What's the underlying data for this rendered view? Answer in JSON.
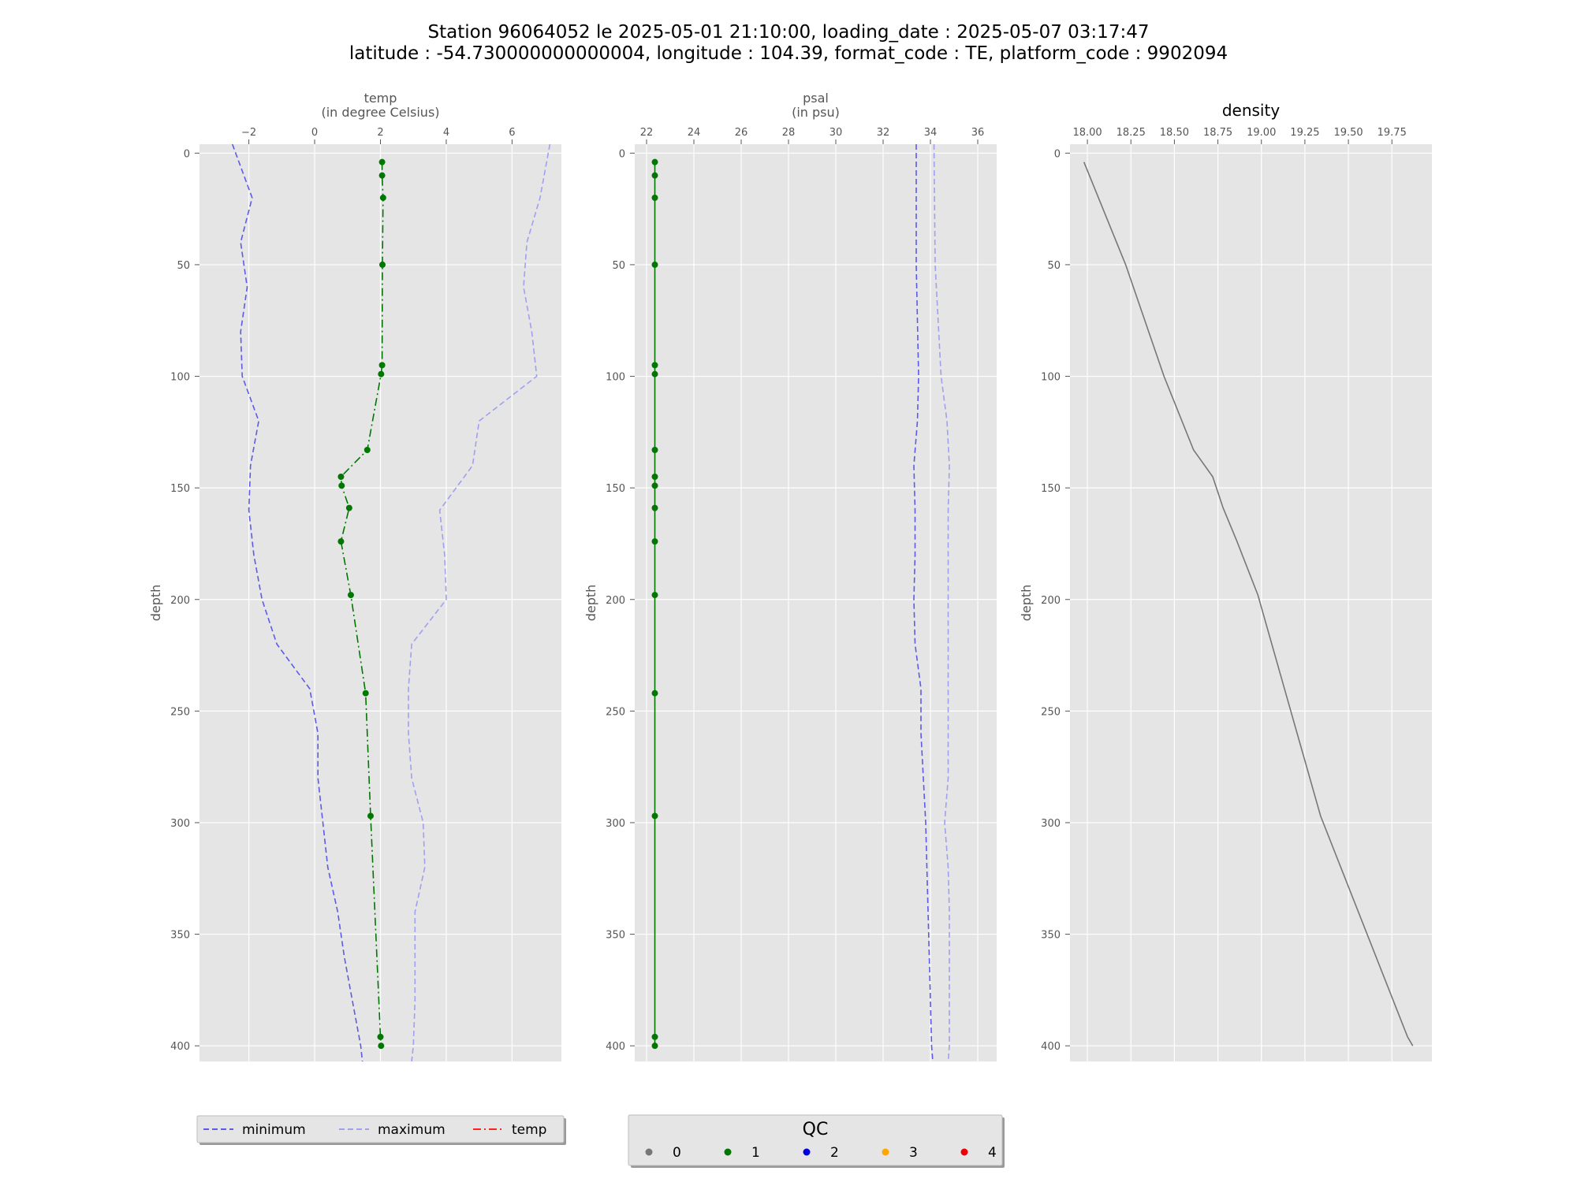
{
  "figure": {
    "title_line1": "Station 96064052 le 2025-05-01 21:10:00, loading_date : 2025-05-07 03:17:47",
    "title_line2": "latitude : -54.730000000000004, longitude : 104.39, format_code : TE, platform_code : 9902094"
  },
  "chart_data": [
    {
      "type": "line",
      "id": "temp",
      "xlabel": "temp",
      "xlabel_unit": "(in degree Celsius)",
      "ylabel": "depth",
      "xlim": [
        -3.5,
        7.5
      ],
      "ylim": [
        407,
        -4
      ],
      "xticks": [
        -2,
        0,
        2,
        4,
        6
      ],
      "xtick_labels": [
        "−2",
        "0",
        "2",
        "4",
        "6"
      ],
      "yticks": [
        0,
        50,
        100,
        150,
        200,
        250,
        300,
        350,
        400
      ],
      "grid": true,
      "series": [
        {
          "name": "minimum",
          "color": "#5b5bea",
          "style": "dashed",
          "depth": [
            -4,
            20,
            40,
            60,
            80,
            100,
            120,
            140,
            160,
            180,
            200,
            220,
            240,
            260,
            280,
            300,
            320,
            340,
            360,
            380,
            400,
            407
          ],
          "values": [
            -2.5,
            -1.9,
            -2.25,
            -2.05,
            -2.25,
            -2.2,
            -1.7,
            -1.95,
            -2.0,
            -1.85,
            -1.6,
            -1.15,
            -0.15,
            0.1,
            0.1,
            0.25,
            0.4,
            0.7,
            0.9,
            1.15,
            1.4,
            1.45
          ]
        },
        {
          "name": "maximum",
          "color": "#a0a0ee",
          "style": "dashed",
          "depth": [
            -4,
            20,
            40,
            60,
            80,
            100,
            120,
            140,
            160,
            180,
            200,
            220,
            240,
            260,
            280,
            300,
            320,
            340,
            360,
            380,
            400,
            407
          ],
          "values": [
            7.15,
            6.85,
            6.45,
            6.35,
            6.6,
            6.75,
            5.0,
            4.8,
            3.8,
            3.95,
            4.0,
            2.95,
            2.85,
            2.85,
            2.95,
            3.3,
            3.35,
            3.05,
            3.05,
            3.05,
            3.0,
            2.95
          ]
        },
        {
          "name": "temp",
          "color": "#007700",
          "style": "dashdot",
          "depth": [
            4,
            10,
            20,
            50,
            95,
            99,
            133,
            145,
            149,
            159,
            174,
            198,
            242,
            297,
            396,
            400
          ],
          "values": [
            2.05,
            2.05,
            2.08,
            2.06,
            2.05,
            2.02,
            1.6,
            0.8,
            0.82,
            1.05,
            0.8,
            1.1,
            1.55,
            1.7,
            2.0,
            2.02
          ],
          "qc": [
            1,
            1,
            1,
            1,
            1,
            1,
            1,
            1,
            1,
            1,
            1,
            1,
            1,
            1,
            1,
            1
          ]
        }
      ]
    },
    {
      "type": "line",
      "id": "psal",
      "xlabel": "psal",
      "xlabel_unit": "(in psu)",
      "ylabel": "depth",
      "xlim": [
        21.5,
        36.8
      ],
      "ylim": [
        407,
        -4
      ],
      "xticks": [
        22,
        24,
        26,
        28,
        30,
        32,
        34,
        36
      ],
      "xtick_labels": [
        "22",
        "24",
        "26",
        "28",
        "30",
        "32",
        "34",
        "36"
      ],
      "yticks": [
        0,
        50,
        100,
        150,
        200,
        250,
        300,
        350,
        400
      ],
      "grid": true,
      "series": [
        {
          "name": "minimum",
          "color": "#5b5bea",
          "style": "dashed",
          "depth": [
            -4,
            50,
            100,
            120,
            140,
            160,
            180,
            200,
            220,
            240,
            260,
            280,
            300,
            320,
            340,
            360,
            380,
            400,
            407
          ],
          "values": [
            33.4,
            33.4,
            33.5,
            33.45,
            33.3,
            33.35,
            33.35,
            33.3,
            33.35,
            33.6,
            33.6,
            33.7,
            33.8,
            33.85,
            33.9,
            33.95,
            34.0,
            34.05,
            34.1
          ],
          "label": "minimum"
        },
        {
          "name": "maximum",
          "color": "#a0a0ee",
          "style": "dashed",
          "depth": [
            -4,
            50,
            100,
            120,
            140,
            160,
            180,
            200,
            220,
            240,
            260,
            280,
            300,
            320,
            340,
            360,
            380,
            400,
            407
          ],
          "values": [
            34.15,
            34.2,
            34.45,
            34.7,
            34.8,
            34.75,
            34.75,
            34.75,
            34.75,
            34.75,
            34.75,
            34.75,
            34.6,
            34.75,
            34.8,
            34.8,
            34.8,
            34.8,
            34.75
          ]
        },
        {
          "name": "psal",
          "color": "#007700",
          "style": "solid",
          "depth": [
            4,
            10,
            20,
            50,
            95,
            99,
            133,
            145,
            149,
            159,
            174,
            198,
            242,
            297,
            396,
            400
          ],
          "values": [
            22.35,
            22.35,
            22.35,
            22.35,
            22.35,
            22.35,
            22.35,
            22.35,
            22.35,
            22.35,
            22.35,
            22.35,
            22.35,
            22.35,
            22.35,
            22.35
          ],
          "qc": [
            1,
            1,
            1,
            1,
            1,
            1,
            1,
            1,
            1,
            1,
            1,
            1,
            1,
            1,
            1,
            1
          ]
        }
      ]
    },
    {
      "type": "line",
      "id": "density",
      "title": "density",
      "ylabel": "depth",
      "xlim": [
        17.9,
        19.98
      ],
      "ylim": [
        407,
        -4
      ],
      "xticks": [
        18.0,
        18.25,
        18.5,
        18.75,
        19.0,
        19.25,
        19.5,
        19.75
      ],
      "xtick_labels": [
        "18.00",
        "18.25",
        "18.50",
        "18.75",
        "19.00",
        "19.25",
        "19.50",
        "19.75"
      ],
      "yticks": [
        0,
        50,
        100,
        150,
        200,
        250,
        300,
        350,
        400
      ],
      "grid": true,
      "series": [
        {
          "name": "density",
          "color": "#777777",
          "style": "solid",
          "depth": [
            4,
            50,
            100,
            133,
            145,
            159,
            174,
            198,
            242,
            297,
            396,
            400
          ],
          "values": [
            17.98,
            18.22,
            18.44,
            18.61,
            18.72,
            18.78,
            18.86,
            18.98,
            19.14,
            19.34,
            19.84,
            19.87
          ]
        }
      ]
    }
  ],
  "legends": {
    "lines": [
      {
        "label": "minimum",
        "color": "#5b5bea",
        "dash": "7,4"
      },
      {
        "label": "maximum",
        "color": "#a0a0ee",
        "dash": "7,4"
      },
      {
        "label": "temp",
        "color": "#ff2222",
        "dash": "10,4,2,4"
      }
    ],
    "qc": {
      "title": "QC",
      "items": [
        {
          "label": "0",
          "color": "#777777"
        },
        {
          "label": "1",
          "color": "#007700"
        },
        {
          "label": "2",
          "color": "#0000dd"
        },
        {
          "label": "3",
          "color": "#ffa500"
        },
        {
          "label": "4",
          "color": "#ee0000"
        }
      ]
    }
  }
}
